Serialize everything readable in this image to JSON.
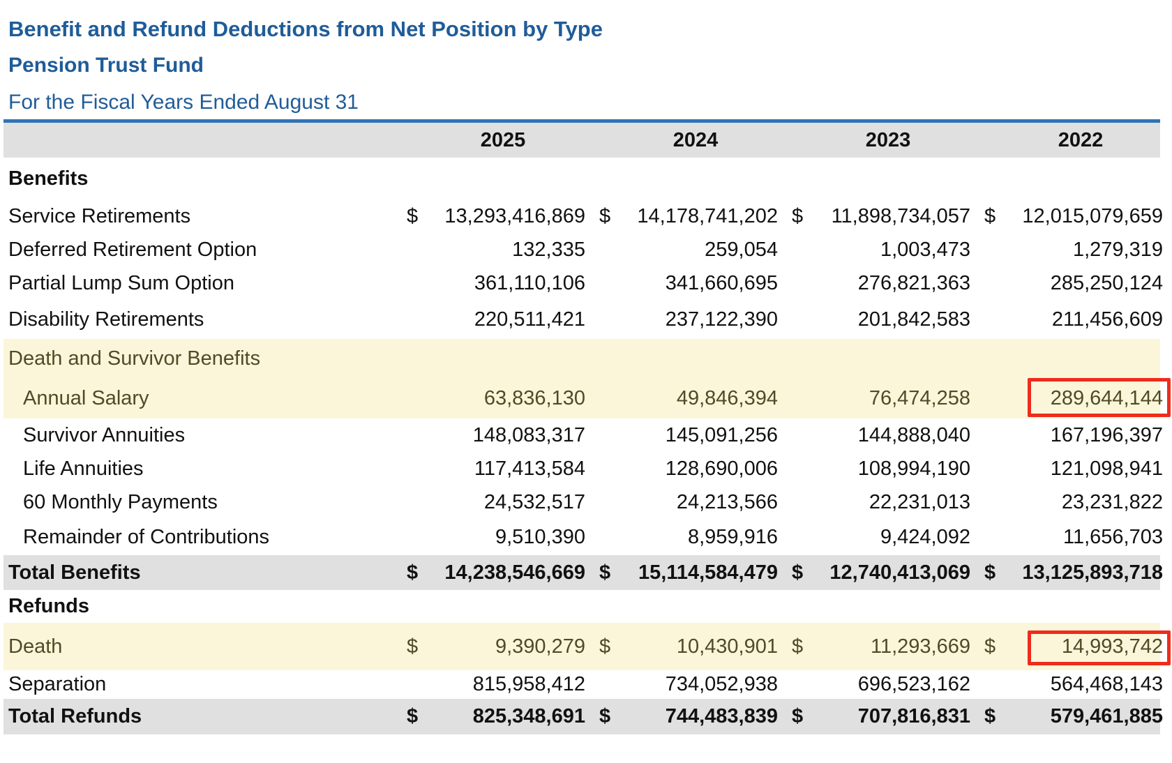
{
  "header": {
    "title": "Benefit and Refund Deductions from Net Position by Type",
    "subtitle": "Pension Trust Fund",
    "period": "For the Fiscal Years Ended August 31"
  },
  "colors": {
    "title_blue": "#1F5C99",
    "rule_blue": "#2E74B5",
    "band_gray": "#E0E0E0",
    "highlight_yellow": "#FBF6DA",
    "highlight_text_olive": "#4F4B26",
    "annotation_red": "#EE2C1C"
  },
  "table": {
    "year_columns": [
      "2025",
      "2024",
      "2023",
      "2022"
    ],
    "rows": [
      {
        "label": "Benefits",
        "type": "section",
        "values": null
      },
      {
        "label": "Service Retirements",
        "type": "data",
        "dollar": true,
        "values": [
          "13,293,416,869",
          "14,178,741,202",
          "11,898,734,057",
          "12,015,079,659"
        ]
      },
      {
        "label": "Deferred Retirement Option",
        "type": "data",
        "values": [
          "132,335",
          "259,054",
          "1,003,473",
          "1,279,319"
        ]
      },
      {
        "label": "Partial Lump Sum Option",
        "type": "data",
        "values": [
          "361,110,106",
          "341,660,695",
          "276,821,363",
          "285,250,124"
        ]
      },
      {
        "label": "Disability Retirements",
        "type": "data",
        "values": [
          "220,511,421",
          "237,122,390",
          "201,842,583",
          "211,456,609"
        ]
      },
      {
        "label": "Death and Survivor Benefits",
        "type": "subsection",
        "highlight": true,
        "values": null
      },
      {
        "label": "Annual Salary",
        "type": "data",
        "indent": true,
        "highlight": true,
        "boxed_col": 3,
        "values": [
          "63,836,130",
          "49,846,394",
          "76,474,258",
          "289,644,144"
        ]
      },
      {
        "label": "Survivor Annuities",
        "type": "data",
        "indent": true,
        "values": [
          "148,083,317",
          "145,091,256",
          "144,888,040",
          "167,196,397"
        ]
      },
      {
        "label": "Life Annuities",
        "type": "data",
        "indent": true,
        "values": [
          "117,413,584",
          "128,690,006",
          "108,994,190",
          "121,098,941"
        ]
      },
      {
        "label": "60 Monthly Payments",
        "type": "data",
        "indent": true,
        "values": [
          "24,532,517",
          "24,213,566",
          "22,231,013",
          "23,231,822"
        ]
      },
      {
        "label": "Remainder of Contributions",
        "type": "data",
        "indent": true,
        "values": [
          "9,510,390",
          "8,959,916",
          "9,424,092",
          "11,656,703"
        ]
      },
      {
        "label": "Total Benefits",
        "type": "total",
        "dollar": true,
        "values": [
          "14,238,546,669",
          "15,114,584,479",
          "12,740,413,069",
          "13,125,893,718"
        ]
      },
      {
        "label": "Refunds",
        "type": "section",
        "values": null
      },
      {
        "label": "Death",
        "type": "data",
        "highlight": true,
        "dollar": true,
        "boxed_col": 3,
        "values": [
          "9,390,279",
          "10,430,901",
          "11,293,669",
          "14,993,742"
        ]
      },
      {
        "label": "Separation",
        "type": "data",
        "values": [
          "815,958,412",
          "734,052,938",
          "696,523,162",
          "564,468,143"
        ]
      },
      {
        "label": "Total Refunds",
        "type": "total",
        "dollar": true,
        "values": [
          "825,348,691",
          "744,483,839",
          "707,816,831",
          "579,461,885"
        ]
      }
    ]
  }
}
